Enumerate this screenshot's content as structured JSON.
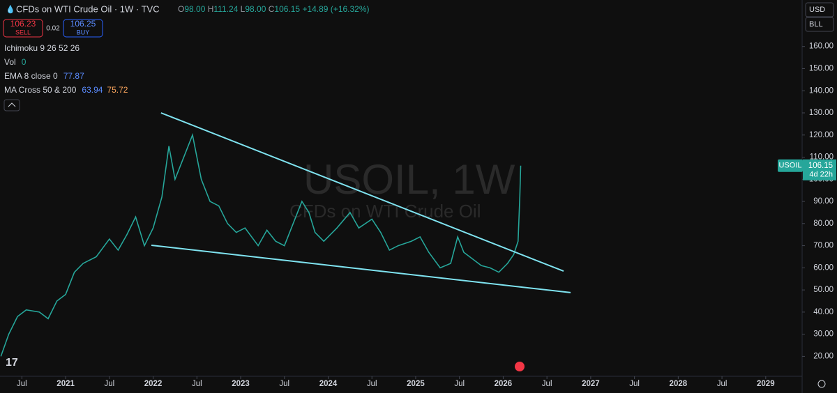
{
  "header": {
    "title": "CFDs on WTI Crude Oil · 1W · TVC",
    "ohlc": [
      {
        "label": "O",
        "value": "98.00"
      },
      {
        "label": "H",
        "value": "111.24"
      },
      {
        "label": "L",
        "value": "98.00"
      },
      {
        "label": "C",
        "value": "106.15"
      }
    ],
    "change": "+14.89 (+16.32%)",
    "sell": {
      "price": "106.23",
      "label": "SELL"
    },
    "spread": "0.02",
    "buy": {
      "price": "106.25",
      "label": "BUY"
    },
    "indicators": [
      {
        "name": "Ichimoku 9 26 52 26",
        "values": []
      },
      {
        "name": "Vol",
        "values": [
          "0"
        ]
      },
      {
        "name": "EMA 8 close 0",
        "values": [
          "77.87"
        ]
      },
      {
        "name": "MA Cross 50 & 200",
        "values": [
          "63.94",
          "75.72"
        ]
      }
    ]
  },
  "toolbar": {
    "currency": "USD",
    "unit": "BLL"
  },
  "chart_data": {
    "type": "line",
    "watermark": [
      "USOIL, 1W",
      "CFDs on WTI Crude Oil"
    ],
    "x": [
      2020.26,
      2020.35,
      2020.45,
      2020.55,
      2020.7,
      2020.8,
      2020.9,
      2021.0,
      2021.1,
      2021.2,
      2021.35,
      2021.5,
      2021.6,
      2021.7,
      2021.8,
      2021.9,
      2022.0,
      2022.1,
      2022.18,
      2022.25,
      2022.35,
      2022.45,
      2022.55,
      2022.65,
      2022.75,
      2022.85,
      2022.95,
      2023.05,
      2023.2,
      2023.3,
      2023.4,
      2023.5,
      2023.6,
      2023.7,
      2023.78,
      2023.85,
      2023.95,
      2024.1,
      2024.25,
      2024.35,
      2024.5,
      2024.6,
      2024.7,
      2024.8,
      2024.95,
      2025.05,
      2025.15,
      2025.28,
      2025.4,
      2025.48,
      2025.55,
      2025.65,
      2025.75,
      2025.85,
      2025.95,
      2026.05,
      2026.12,
      2026.17,
      2026.19,
      2026.2
    ],
    "series": [
      {
        "name": "USOIL",
        "color": "#26a69a",
        "values": [
          20,
          30,
          38,
          41,
          40,
          37,
          45,
          48,
          58,
          62,
          65,
          73,
          68,
          75,
          83,
          70,
          78,
          92,
          115,
          100,
          110,
          120,
          100,
          90,
          88,
          80,
          76,
          78,
          70,
          77,
          72,
          70,
          80,
          90,
          85,
          76,
          72,
          78,
          85,
          78,
          82,
          76,
          68,
          70,
          72,
          74,
          67,
          60,
          62,
          74,
          67,
          64,
          61,
          60,
          58,
          62,
          66,
          72,
          92,
          106.15
        ]
      }
    ],
    "countdown": "4d 22h",
    "trendlines": [
      {
        "x": [
          2022.09,
          2026.69
        ],
        "y": [
          130.0,
          58.5
        ]
      },
      {
        "x": [
          2021.98,
          2026.77
        ],
        "y": [
          70.2,
          48.8
        ]
      }
    ],
    "xlim": [
      2020.25,
      2029.4
    ],
    "ylim": [
      11,
      181
    ],
    "xticks": [
      {
        "value": 2020.5,
        "label": "Jul"
      },
      2021,
      {
        "value": 2021.5,
        "label": "Jul"
      },
      2022,
      {
        "value": 2022.5,
        "label": "Jul"
      },
      2023,
      {
        "value": 2023.5,
        "label": "Jul"
      },
      2024,
      {
        "value": 2024.5,
        "label": "Jul"
      },
      2025,
      {
        "value": 2025.5,
        "label": "Jul"
      },
      2026,
      {
        "value": 2026.5,
        "label": "Jul"
      },
      2027,
      {
        "value": 2027.5,
        "label": "Jul"
      },
      2028,
      {
        "value": 2028.5,
        "label": "Jul"
      },
      2029
    ],
    "yticks": [
      {
        "value": 20,
        "label": "20.00"
      },
      {
        "value": 30,
        "label": "30.00"
      },
      {
        "value": 40,
        "label": "40.00"
      },
      {
        "value": 50,
        "label": "50.00"
      },
      {
        "value": 60,
        "label": "60.00"
      },
      {
        "value": 70,
        "label": "70.00"
      },
      {
        "value": 80,
        "label": "80.00"
      },
      {
        "value": 90,
        "label": "90.00"
      },
      {
        "value": 100,
        "label": "100.00"
      },
      {
        "value": 110,
        "label": "110.00"
      },
      {
        "value": 120,
        "label": "120.00"
      },
      {
        "value": 130,
        "label": "130.00"
      },
      {
        "value": 140,
        "label": "140.00"
      },
      {
        "value": 150,
        "label": "150.00"
      },
      {
        "value": 160,
        "label": "160.00"
      }
    ],
    "trendline_color": "#7fe3f0"
  }
}
